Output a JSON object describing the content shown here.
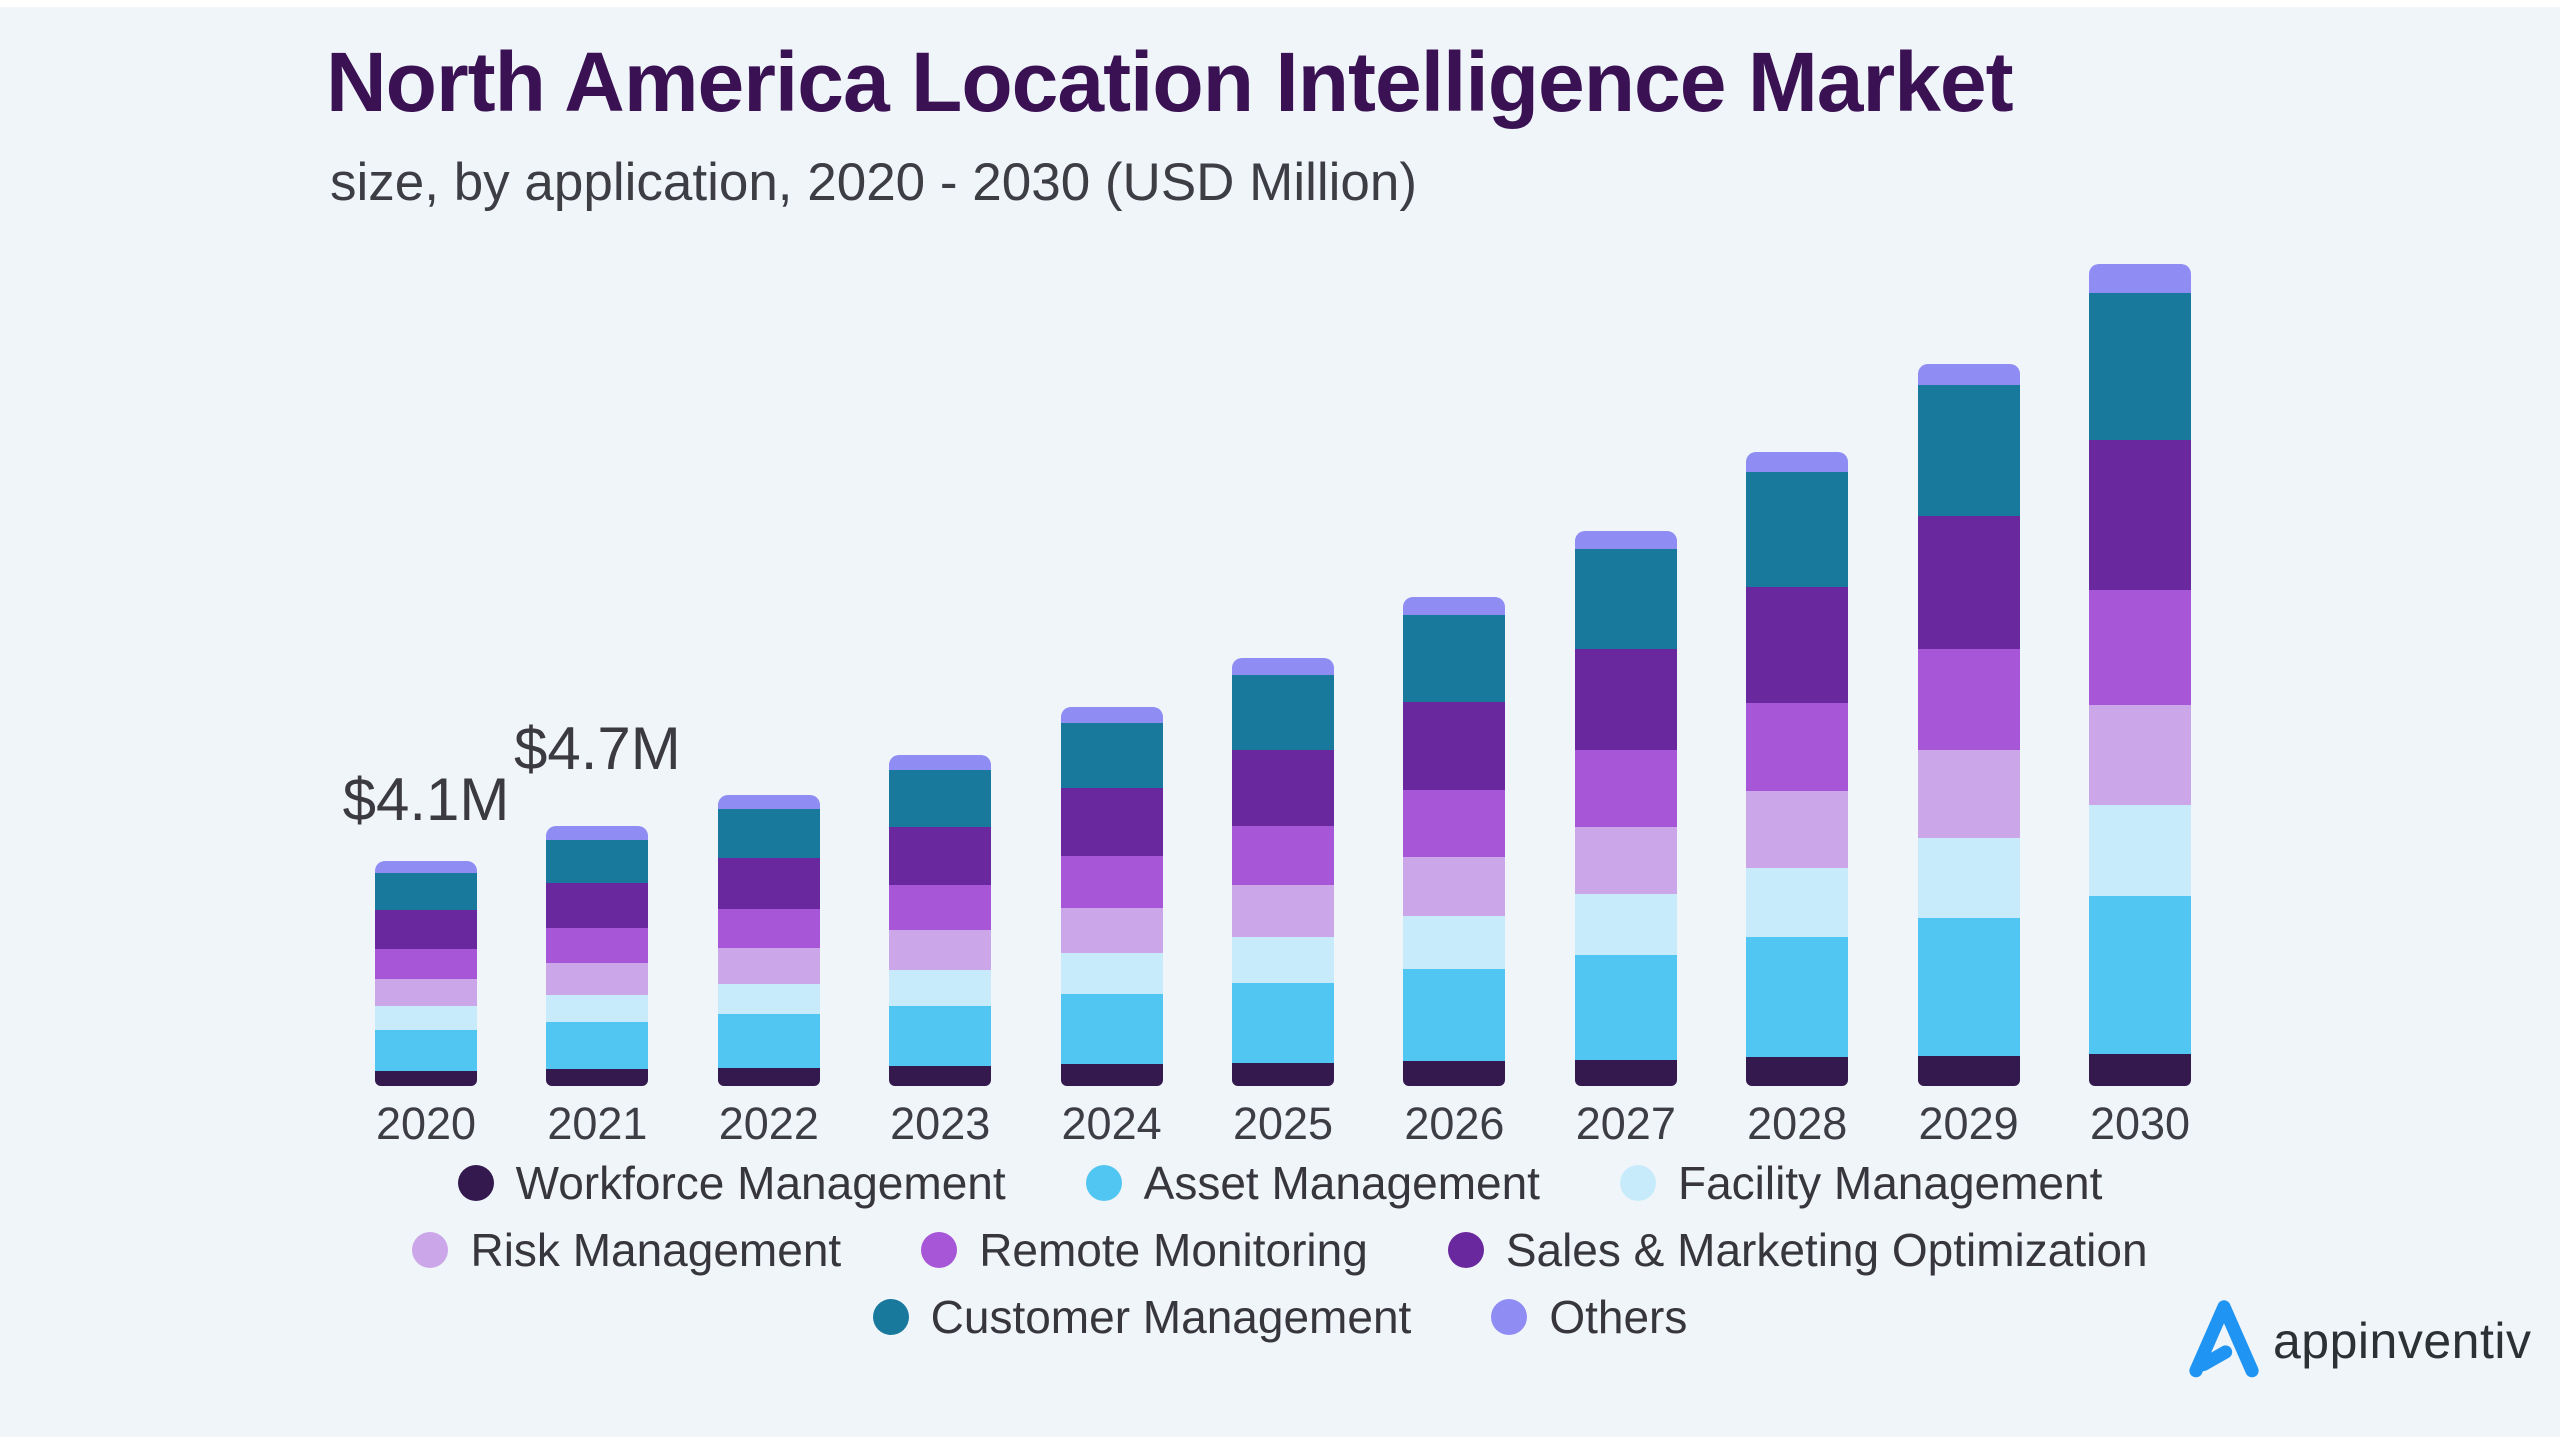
{
  "header": {
    "title": "North America Location Intelligence Market",
    "subtitle": "size, by application, 2020 - 2030 (USD Million)"
  },
  "chart_data": {
    "type": "bar",
    "stacked": true,
    "unit": "USD Million",
    "title": "North America Location Intelligence Market size, by application, 2020 - 2030 (USD Million)",
    "categories": [
      "2020",
      "2021",
      "2022",
      "2023",
      "2024",
      "2025",
      "2026",
      "2027",
      "2028",
      "2029",
      "2030"
    ],
    "series": [
      {
        "name": "Workforce Management",
        "color": "#33194e",
        "values": [
          0.28,
          0.31,
          0.33,
          0.36,
          0.39,
          0.42,
          0.45,
          0.48,
          0.52,
          0.55,
          0.58
        ]
      },
      {
        "name": "Asset Management",
        "color": "#52c6f2",
        "values": [
          0.74,
          0.85,
          0.97,
          1.1,
          1.28,
          1.45,
          1.67,
          1.91,
          2.19,
          2.51,
          2.88
        ]
      },
      {
        "name": "Facility Management",
        "color": "#c8ebfb",
        "values": [
          0.43,
          0.5,
          0.56,
          0.64,
          0.74,
          0.84,
          0.97,
          1.1,
          1.26,
          1.45,
          1.65
        ]
      },
      {
        "name": "Risk Management",
        "color": "#cba7e9",
        "values": [
          0.49,
          0.57,
          0.64,
          0.73,
          0.83,
          0.94,
          1.08,
          1.22,
          1.4,
          1.6,
          1.82
        ]
      },
      {
        "name": "Remote Monitoring",
        "color": "#a656d6",
        "values": [
          0.55,
          0.64,
          0.72,
          0.82,
          0.94,
          1.07,
          1.22,
          1.4,
          1.6,
          1.83,
          2.09
        ]
      },
      {
        "name": "Sales & Marketing Optimization",
        "color": "#6a289e",
        "values": [
          0.71,
          0.82,
          0.93,
          1.06,
          1.23,
          1.39,
          1.6,
          1.84,
          2.11,
          2.42,
          2.73
        ]
      },
      {
        "name": "Customer Management",
        "color": "#19799d",
        "values": [
          0.68,
          0.79,
          0.89,
          1.03,
          1.19,
          1.36,
          1.57,
          1.81,
          2.08,
          2.39,
          2.67
        ]
      },
      {
        "name": "Others",
        "color": "#8f8cf4",
        "values": [
          0.22,
          0.24,
          0.26,
          0.28,
          0.3,
          0.31,
          0.33,
          0.34,
          0.36,
          0.38,
          0.52
        ]
      }
    ],
    "totals": [
      4.1,
      4.7,
      5.3,
      6.0,
      6.9,
      7.8,
      8.9,
      10.1,
      11.5,
      13.1,
      14.9
    ],
    "ylim": [
      0,
      15
    ],
    "grid": false,
    "legend_position": "bottom",
    "legend_rows": [
      [
        "Workforce Management",
        "Asset Management",
        "Facility Management"
      ],
      [
        "Risk Management",
        "Remote Monitoring",
        "Sales & Marketing Optimization"
      ],
      [
        "Customer Management",
        "Others"
      ]
    ],
    "annotations": [
      {
        "category": "2020",
        "label": "$4.1M"
      },
      {
        "category": "2021",
        "label": "$4.7M"
      }
    ]
  },
  "branding": {
    "logo_text": "appinventiv",
    "logo_mark": "appinventiv-a-mark",
    "logo_color": "#2094f3"
  },
  "colors": {
    "background": "#f0f5fa",
    "title": "#3a1253",
    "body_text": "#3d3d44"
  }
}
